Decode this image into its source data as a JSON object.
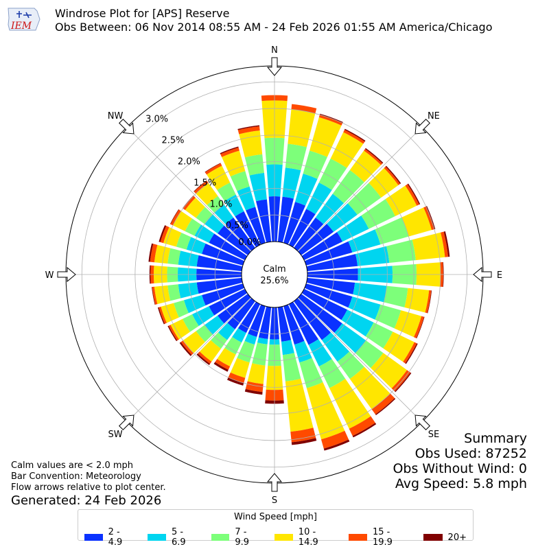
{
  "logo": {
    "name": "iem-logo",
    "text": "IEM"
  },
  "title": {
    "line1": "Windrose Plot for [APS] Reserve",
    "line2": "Obs Between: 06 Nov 2014 08:55 AM - 24 Feb 2026 01:55 AM America/Chicago"
  },
  "summary": {
    "heading": "Summary",
    "obs_used": "Obs Used: 87252",
    "obs_without_wind": "Obs Without Wind: 0",
    "avg_speed": "Avg Speed: 5.8 mph"
  },
  "notes": {
    "calm": "Calm values are < 2.0 mph",
    "bar_convention": "Bar Convention: Meteorology",
    "flow_arrows": "Flow arrows relative to plot center.",
    "generated": "Generated: 24 Feb 2026"
  },
  "legend": {
    "title": "Wind Speed [mph]",
    "items": [
      {
        "label": "2 - 4.9",
        "color": "#0a32ff"
      },
      {
        "label": "5 - 6.9",
        "color": "#00d5f0"
      },
      {
        "label": "7 - 9.9",
        "color": "#7dff7a"
      },
      {
        "label": "10 - 14.9",
        "color": "#ffe600"
      },
      {
        "label": "15 - 19.9",
        "color": "#ff4a00"
      },
      {
        "label": "20+",
        "color": "#800000"
      }
    ]
  },
  "chart_data": {
    "type": "windrose",
    "radial_unit": "%",
    "radial_ticks": [
      "0.0%",
      "0.5%",
      "1.0%",
      "1.5%",
      "2.0%",
      "2.5%",
      "3.0%"
    ],
    "rlim": [
      0,
      3.3
    ],
    "calm": {
      "label": "Calm",
      "value": "25.6%"
    },
    "compass_labels": [
      "N",
      "NE",
      "E",
      "SE",
      "S",
      "SW",
      "W",
      "NW"
    ],
    "grid": true,
    "directions_deg": [
      0,
      10,
      20,
      30,
      40,
      50,
      60,
      70,
      80,
      90,
      100,
      110,
      120,
      130,
      140,
      150,
      160,
      170,
      180,
      190,
      200,
      210,
      220,
      230,
      240,
      250,
      260,
      270,
      280,
      290,
      300,
      310,
      320,
      330,
      340,
      350
    ],
    "series": [
      {
        "name": "2 - 4.9",
        "color": "#0a32ff",
        "values": [
          0.85,
          0.85,
          0.8,
          0.75,
          0.7,
          0.75,
          0.8,
          0.9,
          0.95,
          0.95,
          0.9,
          0.9,
          0.9,
          0.95,
          0.9,
          0.85,
          0.75,
          0.65,
          0.6,
          0.6,
          0.6,
          0.6,
          0.65,
          0.7,
          0.75,
          0.8,
          0.85,
          0.85,
          0.85,
          0.8,
          0.75,
          0.7,
          0.7,
          0.7,
          0.7,
          0.8
        ]
      },
      {
        "name": "5 - 6.9",
        "color": "#00d5f0",
        "values": [
          0.6,
          0.55,
          0.55,
          0.55,
          0.55,
          0.55,
          0.55,
          0.55,
          0.6,
          0.65,
          0.6,
          0.55,
          0.55,
          0.55,
          0.5,
          0.45,
          0.35,
          0.25,
          0.1,
          0.1,
          0.15,
          0.2,
          0.25,
          0.3,
          0.35,
          0.35,
          0.35,
          0.35,
          0.35,
          0.3,
          0.3,
          0.3,
          0.3,
          0.35,
          0.4,
          0.5
        ]
      },
      {
        "name": "7 - 9.9",
        "color": "#7dff7a",
        "values": [
          0.5,
          0.45,
          0.45,
          0.5,
          0.55,
          0.55,
          0.55,
          0.55,
          0.5,
          0.45,
          0.4,
          0.4,
          0.4,
          0.4,
          0.4,
          0.45,
          0.5,
          0.5,
          0.4,
          0.4,
          0.35,
          0.25,
          0.2,
          0.2,
          0.2,
          0.2,
          0.2,
          0.2,
          0.2,
          0.2,
          0.2,
          0.2,
          0.2,
          0.25,
          0.3,
          0.35
        ]
      },
      {
        "name": "10 - 14.9",
        "color": "#ffe600",
        "values": [
          0.7,
          0.65,
          0.65,
          0.55,
          0.45,
          0.4,
          0.45,
          0.45,
          0.55,
          0.45,
          0.4,
          0.4,
          0.45,
          0.55,
          0.7,
          0.85,
          1.0,
          0.95,
          0.45,
          0.35,
          0.3,
          0.25,
          0.3,
          0.3,
          0.25,
          0.25,
          0.25,
          0.25,
          0.25,
          0.25,
          0.25,
          0.25,
          0.3,
          0.35,
          0.4,
          0.45
        ]
      },
      {
        "name": "15 - 19.9",
        "color": "#ff4a00",
        "values": [
          0.1,
          0.1,
          0.05,
          0.05,
          0.04,
          0.04,
          0.05,
          0.05,
          0.06,
          0.05,
          0.04,
          0.05,
          0.05,
          0.08,
          0.12,
          0.15,
          0.18,
          0.2,
          0.2,
          0.15,
          0.1,
          0.07,
          0.05,
          0.05,
          0.04,
          0.04,
          0.04,
          0.06,
          0.08,
          0.06,
          0.05,
          0.05,
          0.05,
          0.05,
          0.06,
          0.08
        ]
      },
      {
        "name": "20+",
        "color": "#800000",
        "values": [
          0.0,
          0.0,
          0.02,
          0.02,
          0.02,
          0.02,
          0.02,
          0.02,
          0.03,
          0.01,
          0.01,
          0.01,
          0.02,
          0.02,
          0.02,
          0.03,
          0.04,
          0.05,
          0.06,
          0.05,
          0.05,
          0.04,
          0.03,
          0.03,
          0.02,
          0.02,
          0.01,
          0.02,
          0.03,
          0.03,
          0.01,
          0.01,
          0.01,
          0.01,
          0.02,
          0.02
        ]
      }
    ]
  }
}
